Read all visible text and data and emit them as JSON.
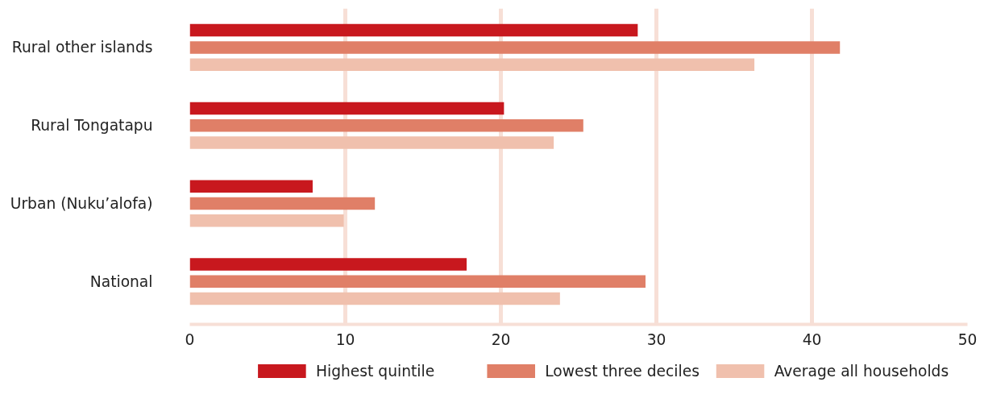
{
  "chart_data": {
    "type": "bar",
    "orientation": "horizontal",
    "categories": [
      "Rural other islands",
      "Rural Tongatapu",
      "Urban (Nuku’alofa)",
      "National"
    ],
    "series": [
      {
        "name": "Highest quintile",
        "color": "#c8181e",
        "values": [
          28.8,
          20.2,
          7.9,
          17.8
        ]
      },
      {
        "name": "Lowest three deciles",
        "color": "#e07f67",
        "values": [
          41.8,
          25.3,
          11.9,
          29.3
        ]
      },
      {
        "name": "Average all households",
        "color": "#f0c0ad",
        "values": [
          36.3,
          23.4,
          9.9,
          23.8
        ]
      }
    ],
    "xlim": [
      0,
      50
    ],
    "xticks": [
      0,
      10,
      20,
      30,
      40,
      50
    ],
    "grid": "x",
    "legend": "bottom"
  }
}
